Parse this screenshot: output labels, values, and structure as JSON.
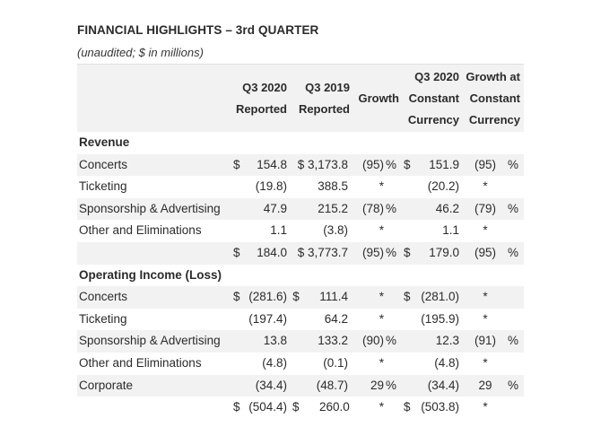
{
  "title": "FINANCIAL HIGHLIGHTS – 3rd QUARTER",
  "subtitle": "(unaudited; $ in millions)",
  "headers": {
    "q3_2020": [
      "Q3 2020",
      "Reported"
    ],
    "q3_2019": [
      "Q3 2019",
      "Reported"
    ],
    "growth": [
      "Growth"
    ],
    "q3_2020_cc": [
      "Q3 2020",
      "Constant",
      "Currency"
    ],
    "growth_cc": [
      "Growth at",
      "Constant",
      "Currency"
    ]
  },
  "rows": [
    {
      "label": "Revenue",
      "section": true,
      "shade": false,
      "cols": [
        "",
        "",
        "",
        "",
        "",
        "",
        "",
        "",
        "",
        "",
        ""
      ]
    },
    {
      "label": "Concerts",
      "section": false,
      "shade": true,
      "cols": [
        "$",
        "154.8",
        "$ 3,173.8",
        "(95)",
        "%",
        "$",
        "151.9",
        "(95)",
        "%"
      ]
    },
    {
      "label": "Ticketing",
      "section": false,
      "shade": false,
      "cols": [
        "",
        "(19.8)",
        "388.5",
        "*",
        "",
        "",
        "(20.2)",
        "*",
        ""
      ]
    },
    {
      "label": "Sponsorship & Advertising",
      "section": false,
      "shade": true,
      "cols": [
        "",
        "47.9",
        "215.2",
        "(78)",
        "%",
        "",
        "46.2",
        "(79)",
        "%"
      ]
    },
    {
      "label": "Other and Eliminations",
      "section": false,
      "shade": false,
      "cols": [
        "",
        "1.1",
        "(3.8)",
        "*",
        "",
        "",
        "1.1",
        "*",
        ""
      ]
    },
    {
      "label": "",
      "section": false,
      "shade": true,
      "cols": [
        "$",
        "184.0",
        "$ 3,773.7",
        "(95)",
        "%",
        "$",
        "179.0",
        "(95)",
        "%"
      ]
    },
    {
      "label": "Operating Income (Loss)",
      "section": true,
      "shade": false,
      "cols": [
        "",
        "",
        "",
        "",
        "",
        "",
        "",
        "",
        ""
      ]
    },
    {
      "label": "Concerts",
      "section": false,
      "shade": true,
      "cols": [
        "$",
        "(281.6)",
        "$      111.4",
        "*",
        "",
        "$",
        "(281.0)",
        "*",
        ""
      ]
    },
    {
      "label": "Ticketing",
      "section": false,
      "shade": false,
      "cols": [
        "",
        "(197.4)",
        "64.2",
        "*",
        "",
        "",
        "(195.9)",
        "*",
        ""
      ]
    },
    {
      "label": "Sponsorship & Advertising",
      "section": false,
      "shade": true,
      "cols": [
        "",
        "13.8",
        "133.2",
        "(90)",
        "%",
        "",
        "12.3",
        "(91)",
        "%"
      ]
    },
    {
      "label": "Other and Eliminations",
      "section": false,
      "shade": false,
      "cols": [
        "",
        "(4.8)",
        "(0.1)",
        "*",
        "",
        "",
        "(4.8)",
        "*",
        ""
      ]
    },
    {
      "label": "Corporate",
      "section": false,
      "shade": true,
      "cols": [
        "",
        "(34.4)",
        "(48.7)",
        "29",
        "%",
        "",
        "(34.4)",
        "29",
        "%"
      ]
    },
    {
      "label": "",
      "section": false,
      "shade": false,
      "cols": [
        "$",
        "(504.4)",
        "$      260.0",
        "*",
        "",
        "$",
        "(503.8)",
        "*",
        ""
      ]
    }
  ]
}
